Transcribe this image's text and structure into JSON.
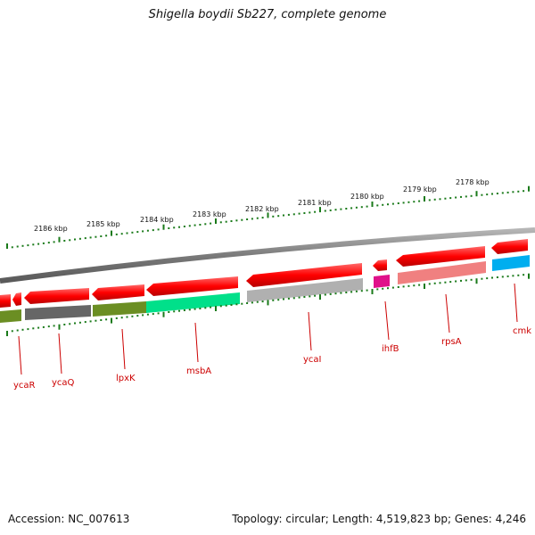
{
  "title": "Shigella boydii Sb227, complete genome",
  "footer": {
    "accession": "Accession: NC_007613",
    "summary": "Topology: circular; Length: 4,519,823 bp; Genes: 4,246"
  },
  "scale": {
    "ticks": [
      "2186 kbp",
      "2185 kbp",
      "2184 kbp",
      "2183 kbp",
      "2182 kbp",
      "2181 kbp",
      "2180 kbp",
      "2179 kbp",
      "2178 kbp"
    ]
  },
  "genes": [
    {
      "name": "ycaR",
      "color": "#6b8e23"
    },
    {
      "name": "ycaQ",
      "color": "#666666"
    },
    {
      "name": "lpxK",
      "color": "#6b8e23"
    },
    {
      "name": "msbA",
      "color": "#00e08a"
    },
    {
      "name": "ycaI",
      "color": "#b0b0b0"
    },
    {
      "name": "ihfB",
      "color": "#e0118a"
    },
    {
      "name": "rpsA",
      "color": "#f08080"
    },
    {
      "name": "cmk",
      "color": "#00aeef"
    }
  ],
  "colors": {
    "arrow": "#ff0000",
    "tick": "#1a7a1a",
    "backbone": "#7a7a7a",
    "label": "#cc0000"
  }
}
